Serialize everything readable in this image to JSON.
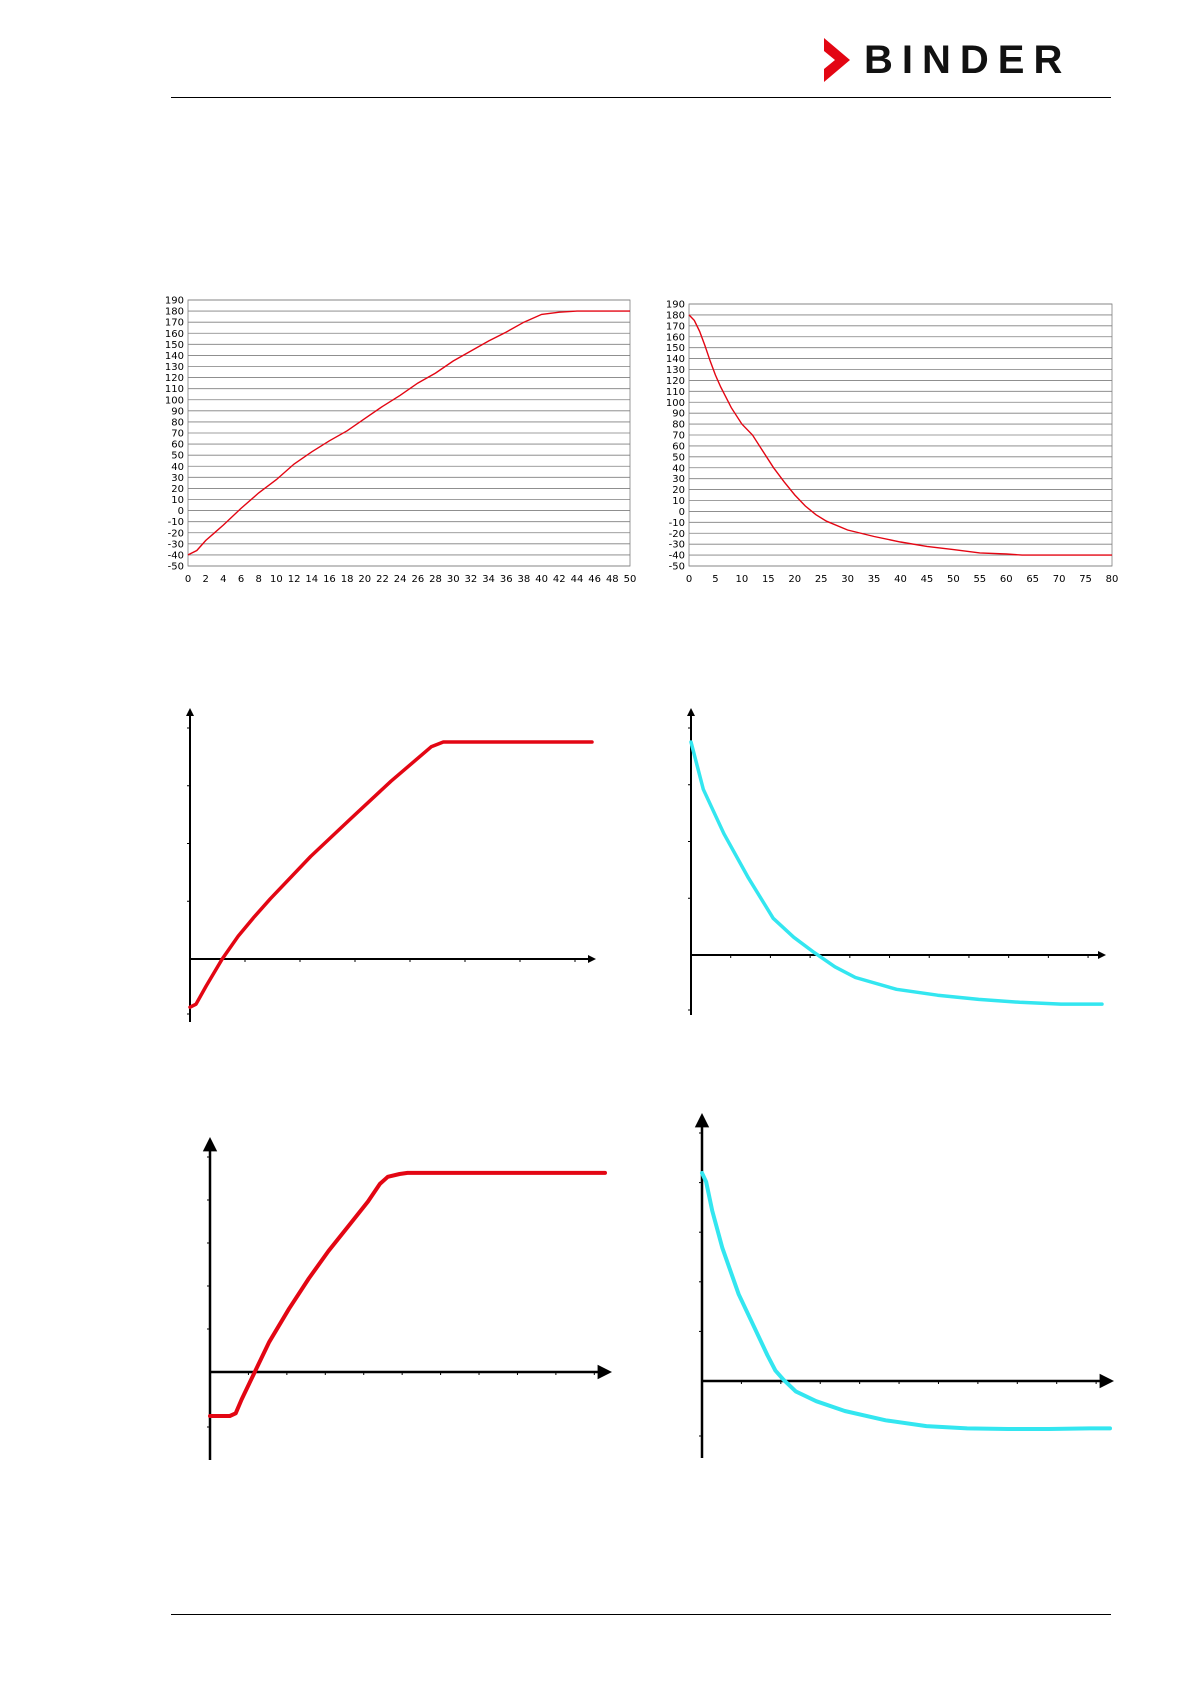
{
  "header": {
    "brand": "BINDER",
    "brand_colors": {
      "text": "#111111",
      "mark": "#e30613"
    }
  },
  "colors": {
    "heating": "#e30613",
    "cooling": "#33e6f0",
    "grid": "#7f7f7f",
    "axis": "#000000"
  },
  "chart_data": [
    {
      "type": "line",
      "xlim": [
        0,
        50
      ],
      "ylim": [
        -50,
        190
      ],
      "x_ticks": [
        0,
        2,
        4,
        6,
        8,
        10,
        12,
        14,
        16,
        18,
        20,
        22,
        24,
        26,
        28,
        30,
        32,
        34,
        36,
        38,
        40,
        42,
        44,
        46,
        48,
        50
      ],
      "y_ticks": [
        -50,
        -40,
        -30,
        -20,
        -10,
        0,
        10,
        20,
        30,
        40,
        50,
        60,
        70,
        80,
        90,
        100,
        110,
        120,
        130,
        140,
        150,
        160,
        170,
        180,
        190
      ],
      "grid": true,
      "series": [
        {
          "color": "#e30613",
          "x": [
            0,
            1,
            2,
            3,
            4,
            6,
            8,
            10,
            12,
            14,
            16,
            18,
            20,
            22,
            24,
            26,
            28,
            30,
            32,
            34,
            36,
            38,
            40,
            42,
            44,
            46,
            48,
            50
          ],
          "y": [
            -40,
            -36,
            -27,
            -20,
            -13,
            2,
            16,
            28,
            42,
            53,
            63,
            72,
            83,
            94,
            104,
            115,
            124,
            135,
            144,
            153,
            161,
            170,
            177,
            179,
            180,
            180,
            180,
            180
          ]
        }
      ]
    },
    {
      "type": "line",
      "xlim": [
        0,
        80
      ],
      "ylim": [
        -50,
        190
      ],
      "x_ticks": [
        0,
        5,
        10,
        15,
        20,
        25,
        30,
        35,
        40,
        45,
        50,
        55,
        60,
        65,
        70,
        75,
        80
      ],
      "y_ticks": [
        -50,
        -40,
        -30,
        -20,
        -10,
        0,
        10,
        20,
        30,
        40,
        50,
        60,
        70,
        80,
        90,
        100,
        110,
        120,
        130,
        140,
        150,
        160,
        170,
        180,
        190
      ],
      "grid": true,
      "series": [
        {
          "color": "#e30613",
          "x": [
            0,
            1,
            2,
            3,
            4,
            5,
            6,
            8,
            10,
            12,
            14,
            16,
            18,
            20,
            22,
            24,
            26,
            30,
            35,
            40,
            45,
            50,
            55,
            60,
            63,
            70,
            75,
            80
          ],
          "y": [
            180,
            175,
            165,
            152,
            138,
            125,
            114,
            95,
            80,
            70,
            55,
            40,
            27,
            15,
            5,
            -3,
            -9,
            -17,
            -23,
            -28,
            -32,
            -35,
            -38,
            -39,
            -40,
            -40,
            -40,
            -40
          ]
        }
      ]
    },
    {
      "type": "line",
      "xlim": [
        0,
        10
      ],
      "ylim": [
        -1,
        4
      ],
      "axes_only": true,
      "x_tick_count": 7,
      "y_tick_count": 4,
      "series": [
        {
          "color": "#e30613",
          "x": [
            0,
            0.15,
            0.4,
            0.8,
            1.2,
            1.6,
            2,
            3,
            4,
            5,
            6,
            6.3,
            6.6,
            8,
            10
          ],
          "y": [
            -0.8,
            -0.75,
            -0.45,
            0,
            0.38,
            0.7,
            1.0,
            1.7,
            2.33,
            2.95,
            3.52,
            3.6,
            3.6,
            3.6,
            3.6
          ]
        }
      ]
    },
    {
      "type": "line",
      "xlim": [
        0,
        10
      ],
      "ylim": [
        -1,
        4
      ],
      "axes_only": true,
      "x_tick_count": 10,
      "y_tick_count": 4,
      "series": [
        {
          "color": "#33e6f0",
          "x": [
            0,
            0.3,
            0.8,
            1.4,
            2,
            2.5,
            3,
            3.5,
            4,
            5,
            6,
            7,
            8,
            9,
            9.5,
            10
          ],
          "y": [
            3.6,
            2.8,
            2.05,
            1.3,
            0.62,
            0.3,
            0.04,
            -0.2,
            -0.38,
            -0.58,
            -0.68,
            -0.75,
            -0.8,
            -0.83,
            -0.83,
            -0.83
          ]
        }
      ]
    },
    {
      "type": "line",
      "xlim": [
        0,
        10
      ],
      "ylim": [
        -1,
        4
      ],
      "axes_only": true,
      "x_tick_count": 10,
      "y_tick_count": 5,
      "series": [
        {
          "color": "#e30613",
          "x": [
            0,
            0.5,
            0.65,
            0.8,
            1,
            1.2,
            1.5,
            2,
            2.5,
            3,
            3.5,
            4,
            4.3,
            4.5,
            4.8,
            5,
            6,
            8,
            10
          ],
          "y": [
            -0.8,
            -0.8,
            -0.75,
            -0.5,
            -0.2,
            0.1,
            0.55,
            1.15,
            1.7,
            2.2,
            2.65,
            3.1,
            3.42,
            3.55,
            3.6,
            3.62,
            3.62,
            3.62,
            3.62
          ]
        }
      ]
    },
    {
      "type": "line",
      "xlim": [
        0,
        10
      ],
      "ylim": [
        -1,
        4
      ],
      "axes_only": true,
      "x_tick_count": 10,
      "y_tick_count": 5,
      "series": [
        {
          "color": "#33e6f0",
          "x": [
            0,
            0.1,
            0.25,
            0.5,
            0.9,
            1.2,
            1.6,
            1.8,
            2,
            2.3,
            2.8,
            3.5,
            4.5,
            5.5,
            6.5,
            7.5,
            8.5,
            9.5,
            10
          ],
          "y": [
            3.6,
            3.45,
            2.95,
            2.3,
            1.5,
            1.05,
            0.45,
            0.18,
            0.02,
            -0.18,
            -0.35,
            -0.52,
            -0.68,
            -0.78,
            -0.82,
            -0.83,
            -0.83,
            -0.82,
            -0.82
          ]
        }
      ]
    }
  ]
}
